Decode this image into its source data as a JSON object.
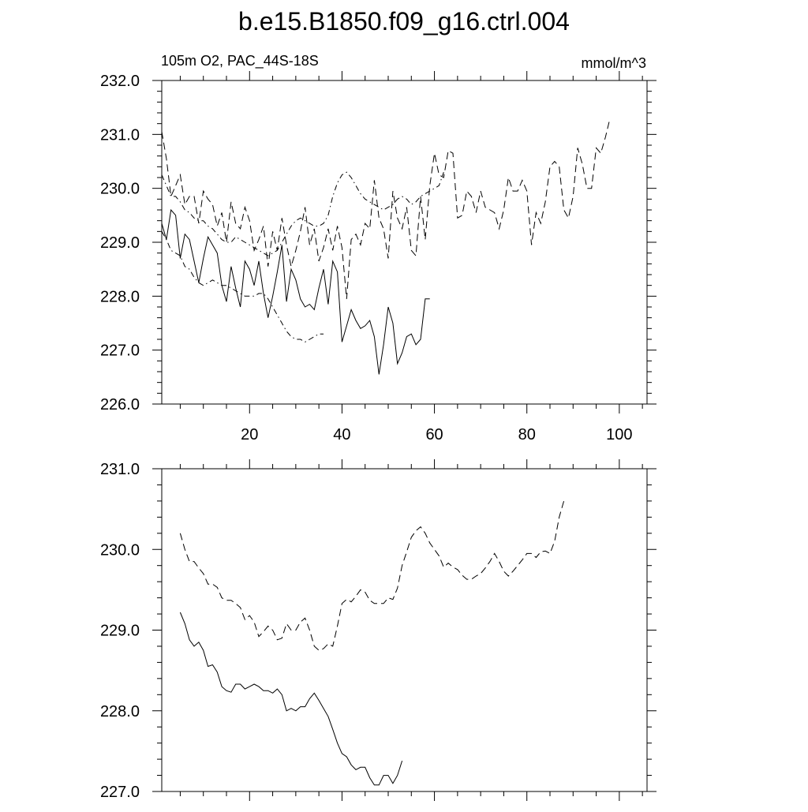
{
  "title": "b.e15.B1850.f09_g16.ctrl.004",
  "chart_data": [
    {
      "type": "line",
      "subtitle_left": "105m O2, PAC_44S-18S",
      "subtitle_right": "mmol/m^3",
      "xlim": [
        1,
        106
      ],
      "ylim": [
        226.0,
        232.0
      ],
      "x_ticks": [
        20,
        40,
        60,
        80,
        100
      ],
      "y_ticks": [
        "226.0",
        "227.0",
        "228.0",
        "229.0",
        "230.0",
        "231.0",
        "232.0"
      ],
      "series": [
        {
          "style": "solid",
          "x_start": 1,
          "values": [
            229.35,
            229.05,
            229.6,
            229.5,
            228.7,
            229.15,
            229.05,
            228.65,
            228.25,
            228.7,
            229.1,
            228.95,
            228.8,
            228.2,
            227.9,
            228.55,
            228.15,
            227.8,
            228.65,
            228.5,
            228.2,
            228.65,
            228.05,
            227.6,
            228.0,
            228.45,
            228.95,
            227.9,
            228.5,
            228.3,
            227.95,
            227.8,
            227.85,
            227.75,
            228.15,
            228.5,
            227.85,
            228.65,
            228.45,
            227.15,
            227.45,
            227.75,
            227.55,
            227.4,
            227.45,
            227.55,
            227.25,
            226.55,
            227.1,
            227.8,
            227.5,
            226.75,
            226.95,
            227.25,
            227.3,
            227.1,
            227.2,
            227.95,
            227.95
          ]
        },
        {
          "style": "dash",
          "x_start": 1,
          "values": [
            231.05,
            230.55,
            229.85,
            230.05,
            230.25,
            229.7,
            229.85,
            229.85,
            229.35,
            229.95,
            229.8,
            229.7,
            229.3,
            229.55,
            229.0,
            229.75,
            229.35,
            229.25,
            229.65,
            229.4,
            228.85,
            229.05,
            229.3,
            228.55,
            229.2,
            228.85,
            229.45,
            228.95,
            228.55,
            228.85,
            229.2,
            229.65,
            228.95,
            229.25,
            228.65,
            228.9,
            229.25,
            228.85,
            229.3,
            228.9,
            227.95,
            229.05,
            229.15,
            228.95,
            229.35,
            229.25,
            230.15,
            229.45,
            229.25,
            228.7,
            229.95,
            229.45,
            229.25,
            229.65,
            228.85,
            228.75,
            229.85,
            229.05,
            230.05,
            230.65,
            230.25,
            230.2,
            230.7,
            230.65,
            229.45,
            229.5,
            229.95,
            229.85,
            229.55,
            229.95,
            229.65,
            229.6,
            229.55,
            229.25,
            229.6,
            230.2,
            229.95,
            229.95,
            230.15,
            229.95,
            228.95,
            229.55,
            229.35,
            229.75,
            230.4,
            230.5,
            230.4,
            229.6,
            229.45,
            229.85,
            230.75,
            230.45,
            230.0,
            230.0,
            230.75,
            230.65,
            230.95,
            231.3
          ]
        },
        {
          "style": "dashdot",
          "x_start": 1,
          "values": [
            229.2,
            229.05,
            228.85,
            228.8,
            228.75,
            228.55,
            228.5,
            228.35,
            228.25,
            228.2,
            228.25,
            228.3,
            228.25,
            228.2,
            228.2,
            228.15,
            228.1,
            228.05,
            228.0,
            228.0,
            228.0,
            228.05,
            228.05,
            227.95,
            227.8,
            227.65,
            227.5,
            227.35,
            227.25,
            227.2,
            227.2,
            227.15,
            227.2,
            227.25,
            227.3,
            227.3
          ]
        },
        {
          "style": "dashdot",
          "x_start": 1,
          "values": [
            230.25,
            230.05,
            229.85,
            229.85,
            229.75,
            229.6,
            229.55,
            229.45,
            229.4,
            229.4,
            229.3,
            229.25,
            229.15,
            229.05,
            229.0,
            229.0,
            229.1,
            229.05,
            229.0,
            228.95,
            228.9,
            228.85,
            228.8,
            228.75,
            228.8,
            228.85,
            229.0,
            229.15,
            229.3,
            229.4,
            229.45,
            229.4,
            229.35,
            229.3,
            229.3,
            229.35,
            229.5,
            229.85,
            230.1,
            230.25,
            230.3,
            230.2,
            230.05,
            229.9,
            229.8,
            229.75,
            229.7,
            229.65,
            229.6,
            229.65,
            229.7,
            229.8,
            229.85,
            229.8,
            229.7,
            229.75,
            229.85,
            229.9,
            229.95,
            230.0,
            230.05,
            230.3
          ]
        }
      ]
    },
    {
      "type": "line",
      "xlim": [
        1,
        106
      ],
      "ylim": [
        227.0,
        231.0
      ],
      "y_ticks": [
        "227.0",
        "228.0",
        "229.0",
        "230.0",
        "231.0"
      ],
      "series": [
        {
          "style": "solid",
          "x_start": 5,
          "values": [
            229.22,
            229.08,
            228.88,
            228.8,
            228.85,
            228.75,
            228.55,
            228.57,
            228.48,
            228.3,
            228.25,
            228.23,
            228.33,
            228.33,
            228.27,
            228.3,
            228.33,
            228.3,
            228.25,
            228.25,
            228.22,
            228.27,
            228.2,
            228.0,
            228.03,
            228.0,
            228.05,
            228.05,
            228.15,
            228.22,
            228.13,
            228.03,
            227.93,
            227.77,
            227.6,
            227.47,
            227.43,
            227.33,
            227.27,
            227.3,
            227.3,
            227.17,
            227.08,
            227.08,
            227.2,
            227.2,
            227.1,
            227.2,
            227.38
          ]
        },
        {
          "style": "dash",
          "x_start": 5,
          "values": [
            230.2,
            230.0,
            229.85,
            229.85,
            229.77,
            229.7,
            229.57,
            229.57,
            229.53,
            229.4,
            229.37,
            229.37,
            229.33,
            229.28,
            229.13,
            229.18,
            229.1,
            228.92,
            228.98,
            229.05,
            229.0,
            228.88,
            228.9,
            229.08,
            229.0,
            229.0,
            229.1,
            229.15,
            229.0,
            228.8,
            228.75,
            228.77,
            228.83,
            228.8,
            229.05,
            229.33,
            229.38,
            229.35,
            229.42,
            229.5,
            229.47,
            229.37,
            229.33,
            229.33,
            229.33,
            229.4,
            229.38,
            229.52,
            229.8,
            229.97,
            230.15,
            230.23,
            230.28,
            230.2,
            230.08,
            230.0,
            229.92,
            229.78,
            229.83,
            229.78,
            229.75,
            229.68,
            229.63,
            229.63,
            229.67,
            229.7,
            229.77,
            229.85,
            229.95,
            229.85,
            229.73,
            229.67,
            229.73,
            229.8,
            229.87,
            229.95,
            229.95,
            229.9,
            229.97,
            229.98,
            229.95,
            230.1,
            230.4,
            230.6
          ]
        }
      ]
    }
  ]
}
